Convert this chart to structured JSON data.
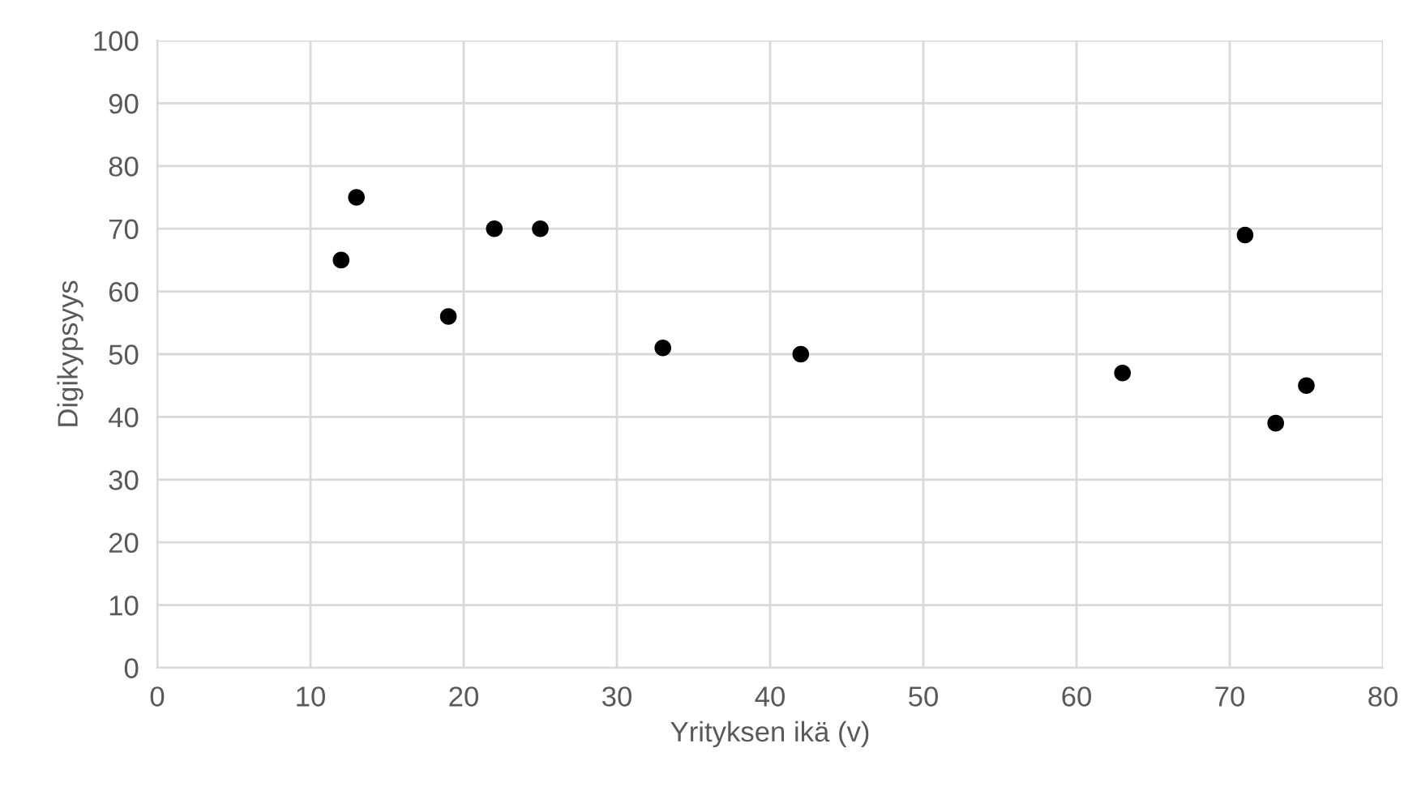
{
  "chart_data": {
    "type": "scatter",
    "xlabel": "Yrityksen ikä (v)",
    "ylabel": "Digikypsyys",
    "x": [
      12,
      13,
      19,
      22,
      25,
      33,
      42,
      63,
      71,
      73,
      75
    ],
    "values": [
      65,
      75,
      56,
      70,
      70,
      51,
      50,
      47,
      69,
      39,
      45
    ],
    "color": "#000000",
    "marker": "circle",
    "xlim": [
      0,
      80
    ],
    "xticks": [
      0,
      10,
      20,
      30,
      40,
      50,
      60,
      70,
      80
    ],
    "ylim": [
      0,
      100
    ],
    "yticks": [
      0,
      10,
      20,
      30,
      40,
      50,
      60,
      70,
      80,
      90,
      100
    ],
    "grid": true
  }
}
